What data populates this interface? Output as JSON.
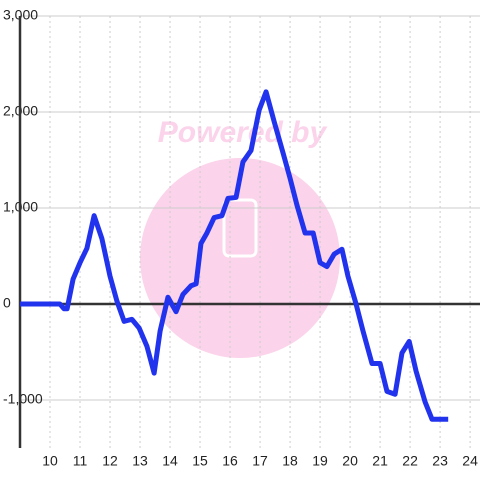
{
  "chart_data": {
    "type": "line",
    "watermark": "Powered by",
    "x": [
      9,
      10.17,
      10.33,
      10.47,
      10.57,
      10.77,
      11.0,
      11.23,
      11.47,
      11.73,
      12.0,
      12.23,
      12.47,
      12.73,
      12.97,
      13.23,
      13.47,
      13.67,
      13.93,
      14.2,
      14.43,
      14.7,
      14.87,
      15.03,
      15.23,
      15.47,
      15.73,
      15.93,
      16.2,
      16.43,
      16.7,
      16.97,
      17.2,
      17.47,
      17.77,
      18.0,
      18.23,
      18.5,
      18.77,
      19.0,
      19.23,
      19.47,
      19.73,
      19.93,
      20.2,
      20.43,
      20.73,
      21.0,
      21.23,
      21.5,
      21.73,
      21.97,
      22.2,
      22.5,
      22.73,
      23.27
    ],
    "series": [
      {
        "color": "#2233ee",
        "values": [
          0,
          0,
          0,
          -50,
          -50,
          260,
          430,
          580,
          920,
          680,
          290,
          30,
          -180,
          -160,
          -250,
          -440,
          -720,
          -280,
          70,
          -80,
          100,
          190,
          210,
          630,
          740,
          900,
          920,
          1100,
          1110,
          1480,
          1600,
          2020,
          2210,
          1900,
          1570,
          1310,
          1030,
          740,
          740,
          430,
          390,
          520,
          570,
          290,
          0,
          -280,
          -620,
          -620,
          -910,
          -940,
          -510,
          -390,
          -700,
          -1020,
          -1200,
          -1200
        ]
      }
    ],
    "xlim": [
      9,
      24.33
    ],
    "xticks": [
      10,
      11,
      12,
      13,
      14,
      15,
      16,
      17,
      18,
      19,
      20,
      21,
      22,
      23,
      24
    ],
    "ylim": [
      -1500,
      3000
    ],
    "yticks": [
      {
        "value": -1000,
        "label": "-1,000"
      },
      0,
      {
        "value": 1000,
        "label": "1,000"
      },
      {
        "value": 2000,
        "label": "2,000"
      },
      {
        "value": 3000,
        "label": "3,000"
      }
    ],
    "grid": true
  }
}
